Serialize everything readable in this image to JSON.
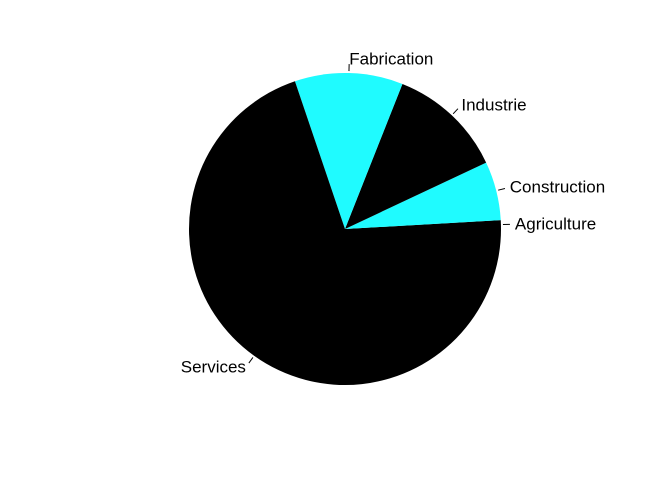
{
  "chart_data": {
    "type": "pie",
    "title": "",
    "start_angle_deg": 0,
    "direction": "counterclockwise",
    "colors": {
      "black": "#000000",
      "cyan": "#1ffbff"
    },
    "slices": [
      {
        "label": "Agriculture",
        "value": 0.9,
        "color": "#000000"
      },
      {
        "label": "Construction",
        "value": 6.1,
        "color": "#1ffbff"
      },
      {
        "label": "Industrie",
        "value": 12.0,
        "color": "#000000"
      },
      {
        "label": "Fabrication",
        "value": 11.2,
        "color": "#1ffbff"
      },
      {
        "label": "Services",
        "value": 69.8,
        "color": "#000000"
      }
    ]
  }
}
